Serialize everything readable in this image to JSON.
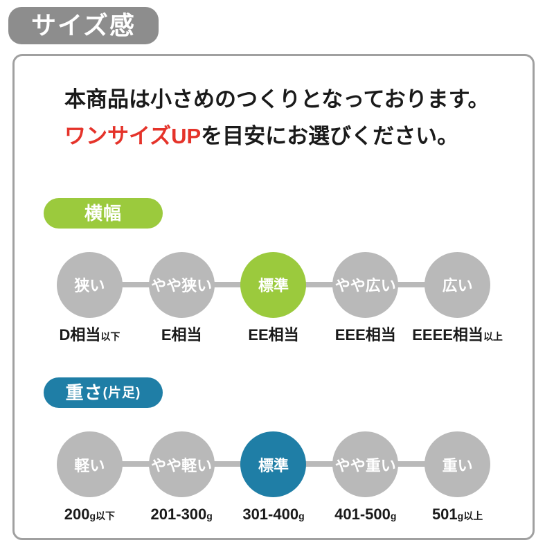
{
  "badge": {
    "label": "サイズ感"
  },
  "intro": {
    "line1": "本商品は小さめのつくりとなっております。",
    "line2_highlight": "ワンサイズUP",
    "line2_rest": "を目安にお選びください。"
  },
  "colors": {
    "badge_gray": "#8d8d8d",
    "box_border": "#a0a0a0",
    "circle_gray": "#b9b9b9",
    "accent_green": "#9bca3d",
    "accent_blue": "#1f7ea6",
    "highlight_red": "#e5332a"
  },
  "width_section": {
    "pill_label": "横幅",
    "pill_sub": "",
    "scale": [
      {
        "grade": "狭い",
        "active": false,
        "value": "D相当",
        "suffix": "以下"
      },
      {
        "grade": "やや狭い",
        "active": false,
        "value": "E相当",
        "suffix": ""
      },
      {
        "grade": "標準",
        "active": true,
        "value": "EE相当",
        "suffix": ""
      },
      {
        "grade": "やや広い",
        "active": false,
        "value": "EEE相当",
        "suffix": ""
      },
      {
        "grade": "広い",
        "active": false,
        "value": "EEEE相当",
        "suffix": "以上"
      }
    ]
  },
  "weight_section": {
    "pill_label": "重さ",
    "pill_sub": "(片足)",
    "scale": [
      {
        "grade": "軽い",
        "active": false,
        "value": "200",
        "suffix": "g以下"
      },
      {
        "grade": "やや軽い",
        "active": false,
        "value": "201-300",
        "suffix": "g"
      },
      {
        "grade": "標準",
        "active": true,
        "value": "301-400",
        "suffix": "g"
      },
      {
        "grade": "やや重い",
        "active": false,
        "value": "401-500",
        "suffix": "g"
      },
      {
        "grade": "重い",
        "active": false,
        "value": "501",
        "suffix": "g以上"
      }
    ]
  }
}
